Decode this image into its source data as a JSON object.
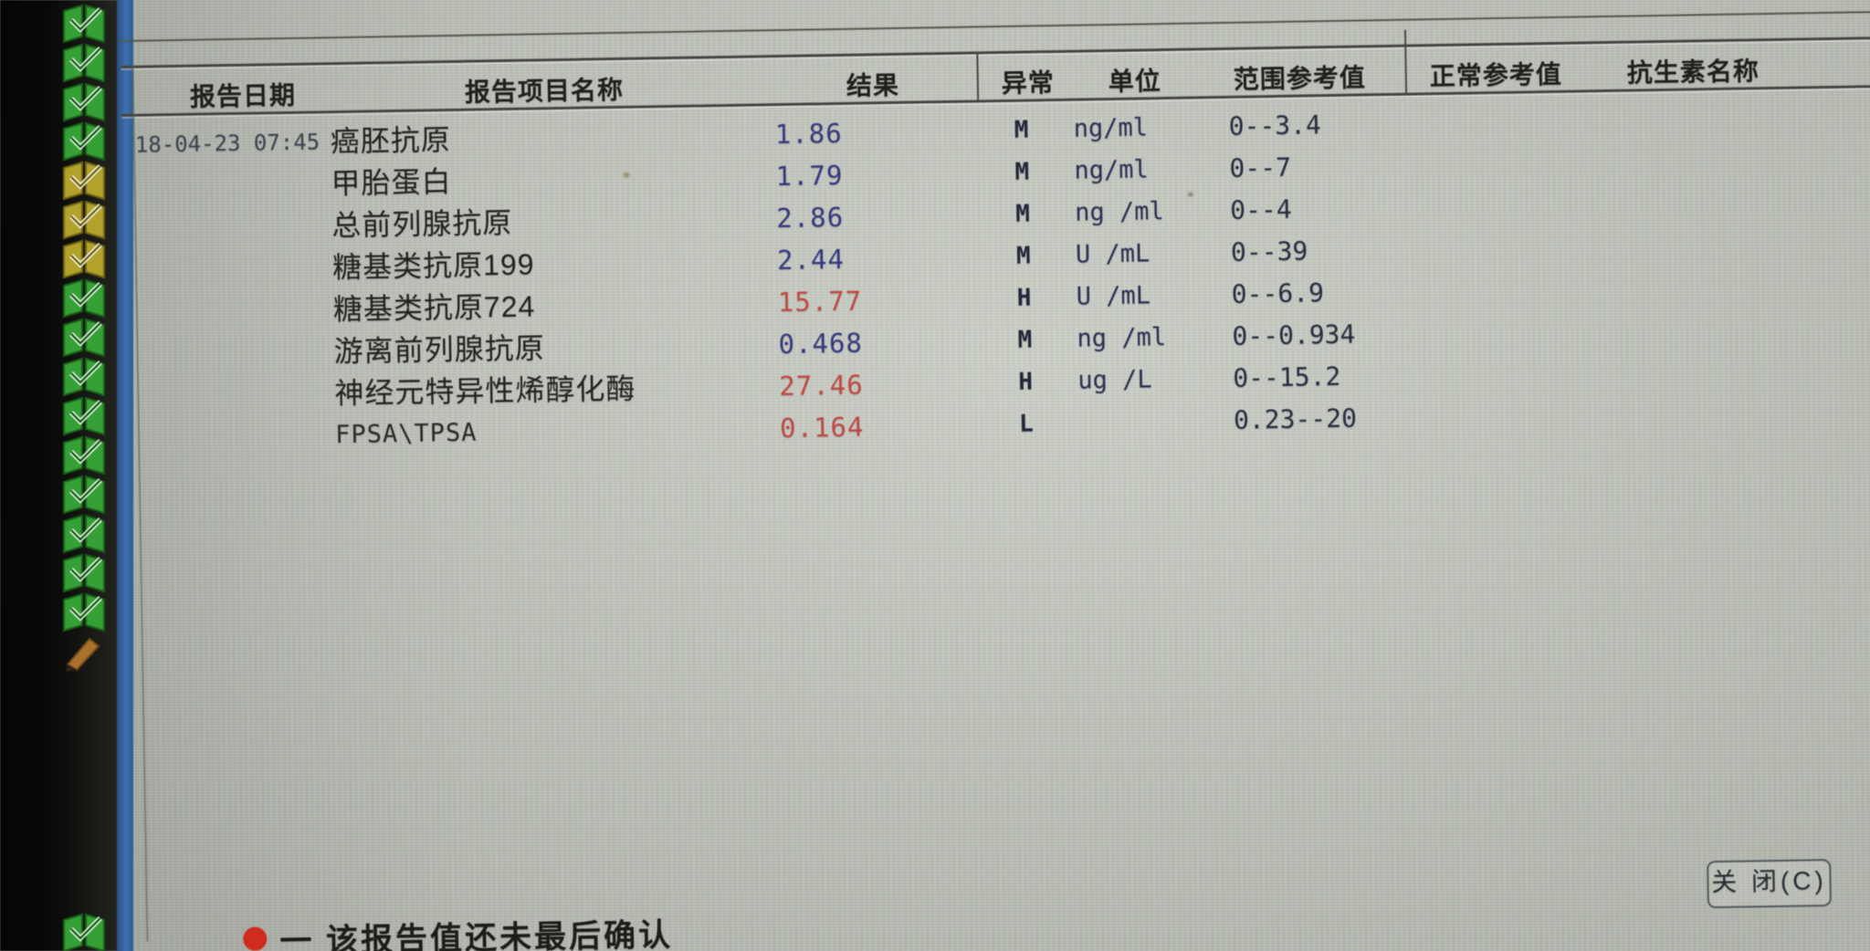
{
  "window": {
    "close_button_label": "关 闭(C)",
    "footnote": {
      "marker": "unconfirmed-red-dot",
      "text": "一 该报告值还未最后确认"
    }
  },
  "table": {
    "columns": [
      "报告日期",
      "报告项目名称",
      "结果",
      "异常",
      "单位",
      "范围参考值",
      "正常参考值",
      "抗生素名称"
    ],
    "rows": [
      {
        "date": "18-04-23 07:45",
        "name": "癌胚抗原",
        "result": "1.86",
        "flag": "M",
        "unit": "ng/ml",
        "range": "0--3.4",
        "abnormal": false
      },
      {
        "date": "",
        "name": "甲胎蛋白",
        "result": "1.79",
        "flag": "M",
        "unit": "ng/ml",
        "range": "0--7",
        "abnormal": false
      },
      {
        "date": "",
        "name": "总前列腺抗原",
        "result": "2.86",
        "flag": "M",
        "unit": "ng /ml",
        "range": "0--4",
        "abnormal": false
      },
      {
        "date": "",
        "name": "糖基类抗原199",
        "result": "2.44",
        "flag": "M",
        "unit": "U /mL",
        "range": "0--39",
        "abnormal": false
      },
      {
        "date": "",
        "name": "糖基类抗原724",
        "result": "15.77",
        "flag": "H",
        "unit": "U /mL",
        "range": "0--6.9",
        "abnormal": true
      },
      {
        "date": "",
        "name": "游离前列腺抗原",
        "result": "0.468",
        "flag": "M",
        "unit": "ng /ml",
        "range": "0--0.934",
        "abnormal": false
      },
      {
        "date": "",
        "name": "神经元特异性烯醇化酶",
        "result": "27.46",
        "flag": "H",
        "unit": "ug /L",
        "range": "0--15.2",
        "abnormal": true
      },
      {
        "date": "",
        "name": "FPSA\\TPSA",
        "result": "0.164",
        "flag": "L",
        "unit": "",
        "range": "0.23--20",
        "abnormal": true
      }
    ]
  },
  "sidebar": {
    "icons": [
      "green",
      "green",
      "green",
      "green",
      "yellow",
      "yellow",
      "yellow",
      "green",
      "green",
      "green",
      "green",
      "green",
      "green",
      "green",
      "green",
      "green",
      "pencil",
      "green"
    ]
  },
  "colors": {
    "normal_value": "#343a7e",
    "abnormal_value": "#bf4a42",
    "flag_text": "#24273a",
    "unit_text": "#2b3054",
    "range_text": "#2a2d40",
    "note_red": "#cf2b1e",
    "border_blue": "#3f6fae"
  }
}
